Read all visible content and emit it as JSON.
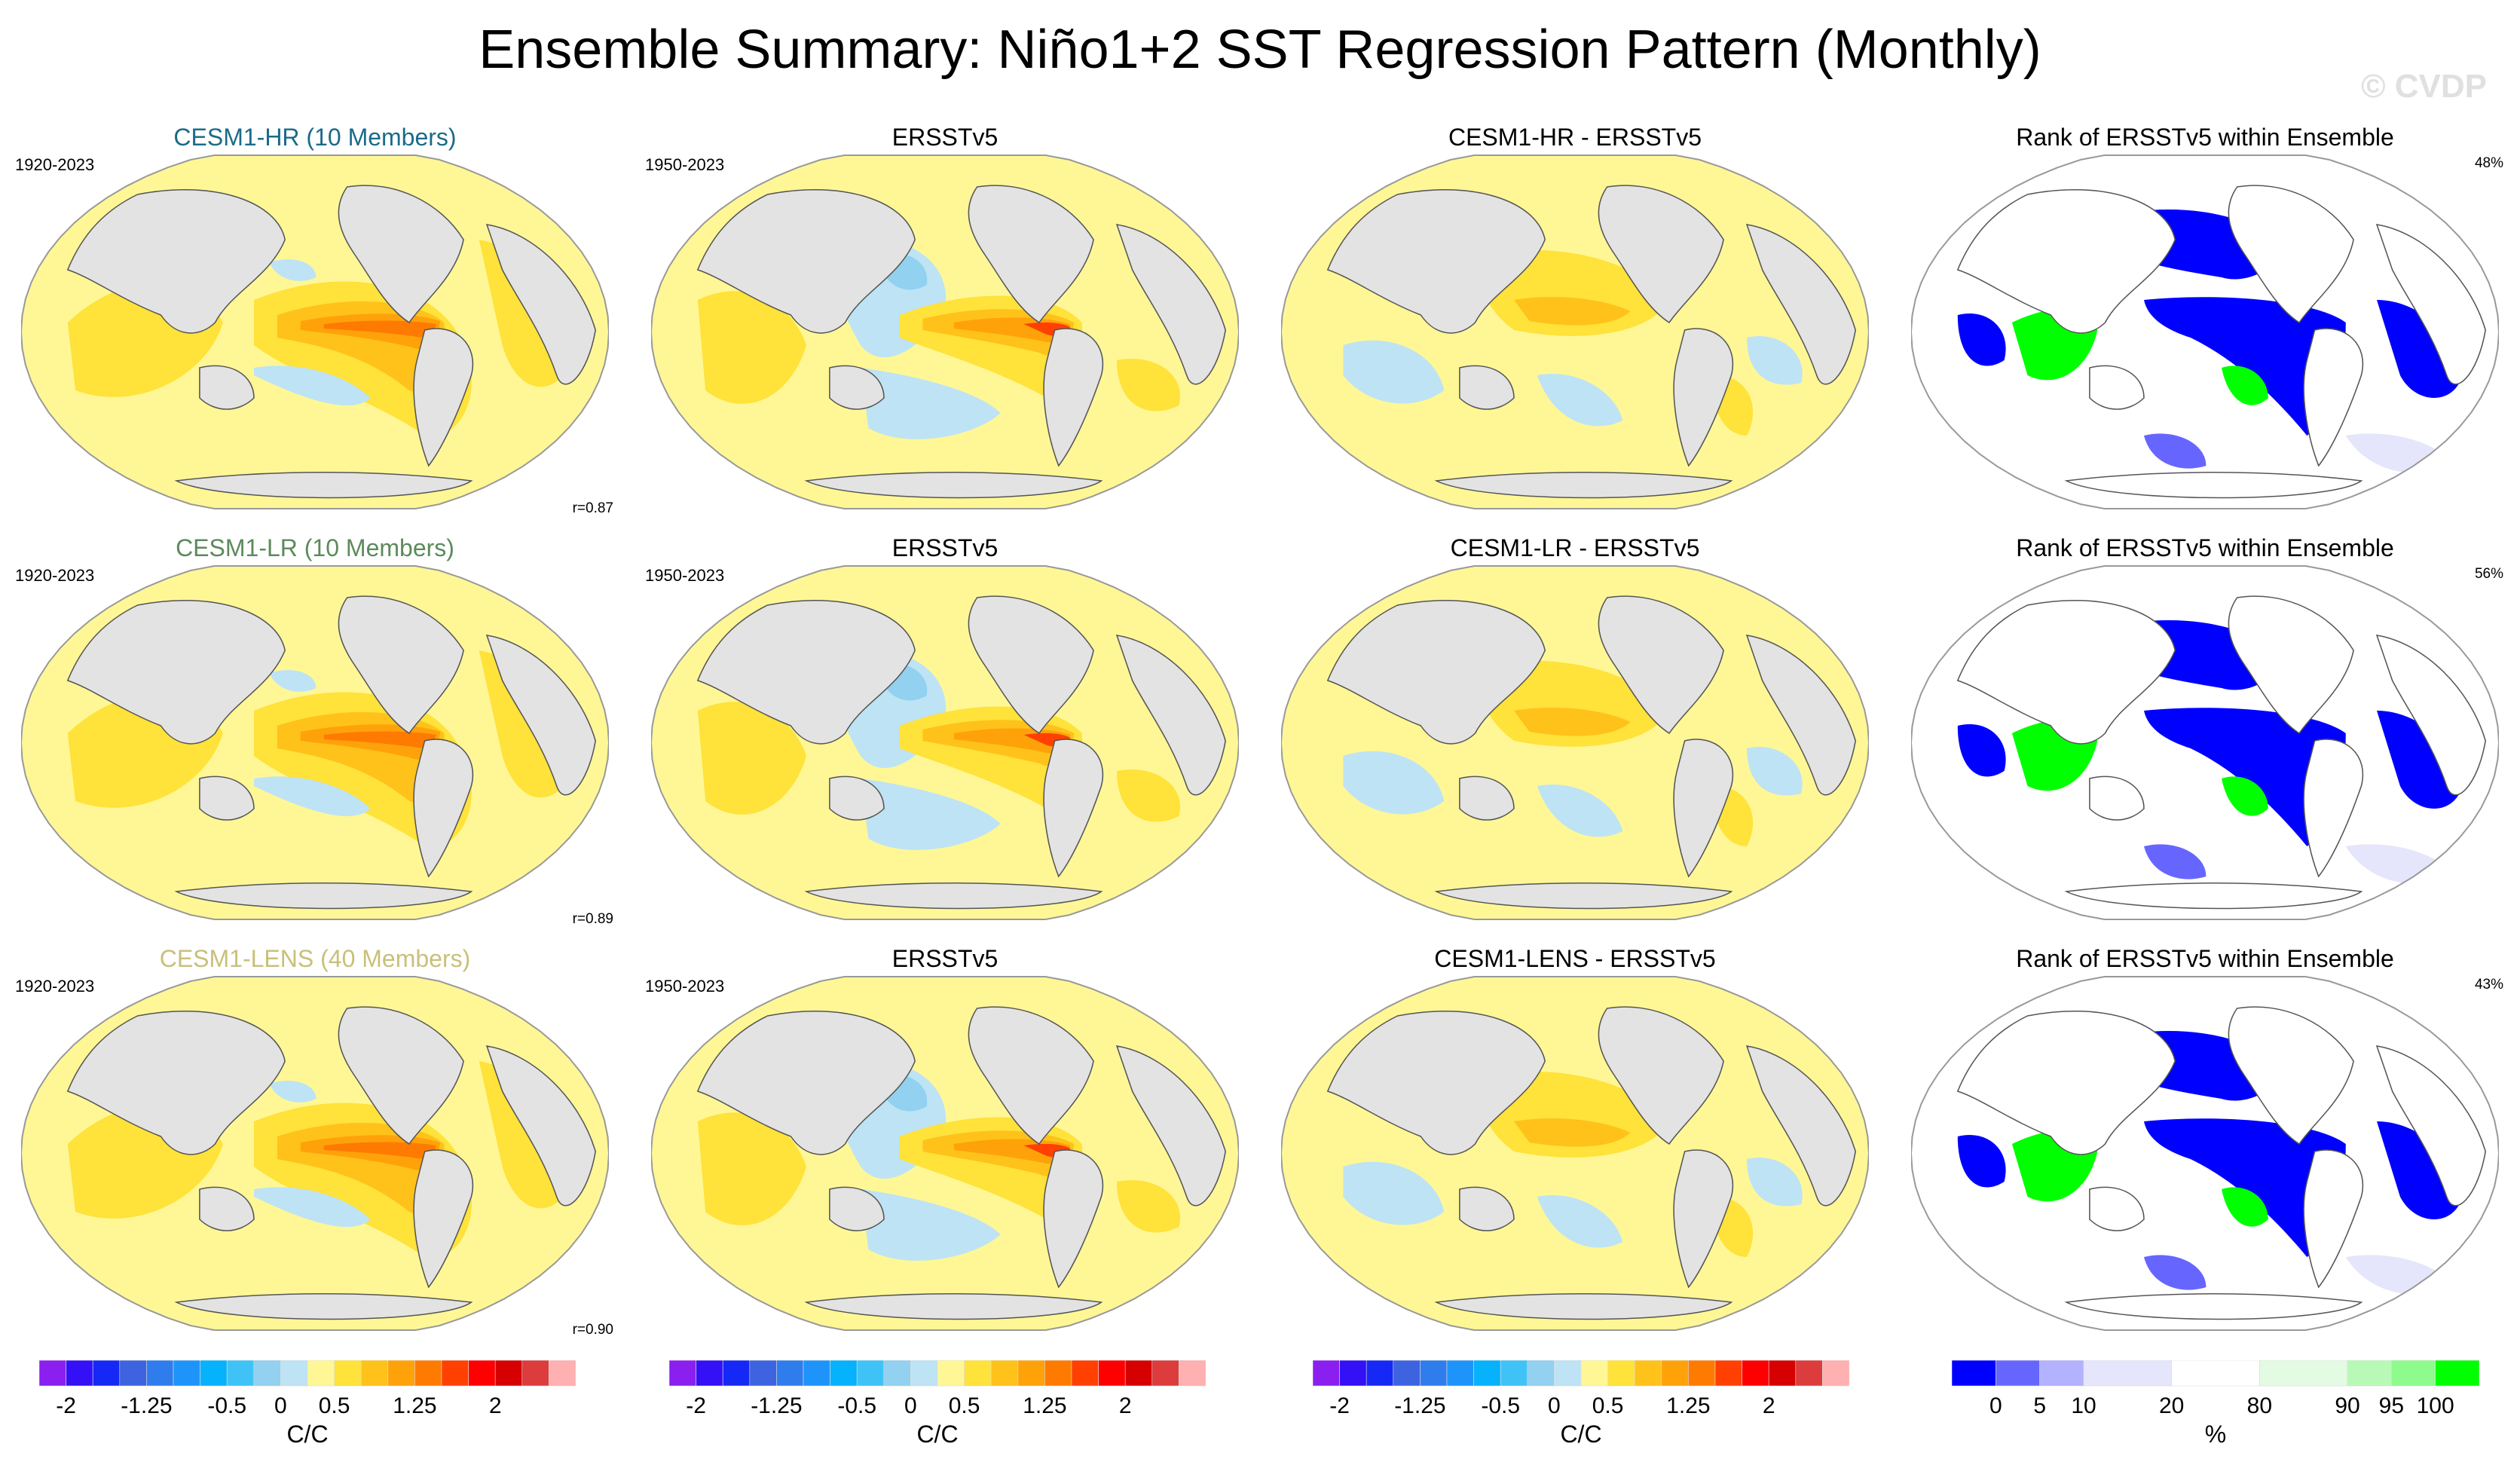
{
  "title": "Ensemble Summary: Niño1+2 SST Regression Pattern (Monthly)",
  "watermark": "© CVDP",
  "colors": {
    "land": "#e3e3e3",
    "coast": "#555555",
    "row_title_colors": [
      "#1a6b8a",
      "#5c8a5c",
      "#c9c07a"
    ]
  },
  "rows": [
    {
      "model_title": "CESM1-HR (10 Members)",
      "model_years": "1920-2023",
      "pattern_corr": "r=0.87",
      "obs_title": "ERSSTv5",
      "obs_years": "1950-2023",
      "diff_title": "CESM1-HR - ERSSTv5",
      "rank_title": "Rank of ERSSTv5 within Ensemble",
      "rank_pct": "48%"
    },
    {
      "model_title": "CESM1-LR (10 Members)",
      "model_years": "1920-2023",
      "pattern_corr": "r=0.89",
      "obs_title": "ERSSTv5",
      "obs_years": "1950-2023",
      "diff_title": "CESM1-LR - ERSSTv5",
      "rank_title": "Rank of ERSSTv5 within Ensemble",
      "rank_pct": "56%"
    },
    {
      "model_title": "CESM1-LENS (40 Members)",
      "model_years": "1920-2023",
      "pattern_corr": "r=0.90",
      "obs_title": "ERSSTv5",
      "obs_years": "1950-2023",
      "diff_title": "CESM1-LENS - ERSSTv5",
      "rank_title": "Rank of ERSSTv5 within Ensemble",
      "rank_pct": "43%"
    }
  ],
  "chart_data": [
    {
      "type": "heatmap",
      "title": "Niño1+2 SST regression colorbar",
      "unit_label": "C/C",
      "tick_labels": [
        "-2",
        "-1.25",
        "-0.5",
        "0",
        "0.5",
        "1.25",
        "2"
      ],
      "levels": [
        -2,
        -1.75,
        -1.5,
        -1.25,
        -1,
        -0.75,
        -0.5,
        -0.25,
        0,
        0.25,
        0.5,
        0.75,
        1,
        1.25,
        1.5,
        1.75,
        2
      ],
      "colors": [
        "#8a1ff0",
        "#3310f5",
        "#1528f5",
        "#3d63e0",
        "#2f7ded",
        "#1e94fb",
        "#05b2fb",
        "#3fc3f7",
        "#92d1ef",
        "#bde3f5",
        "#fff796",
        "#ffe23a",
        "#ffc21a",
        "#ffa20a",
        "#ff7a00",
        "#ff4000",
        "#ff0000",
        "#d70000",
        "#dc3c3c",
        "#ffb0b0"
      ]
    },
    {
      "type": "heatmap",
      "title": "Rank colorbar",
      "unit_label": "%",
      "tick_labels": [
        "0",
        "5",
        "10",
        "20",
        "80",
        "90",
        "95",
        "100"
      ],
      "levels": [
        0,
        5,
        10,
        20,
        80,
        90,
        95,
        100
      ],
      "colors": [
        "#0000ff",
        "#6666ff",
        "#b2b2ff",
        "#e5e5fb",
        "#ffffff",
        "#e2fbe2",
        "#b8f9b8",
        "#8dfc8d",
        "#00ff00"
      ]
    }
  ]
}
